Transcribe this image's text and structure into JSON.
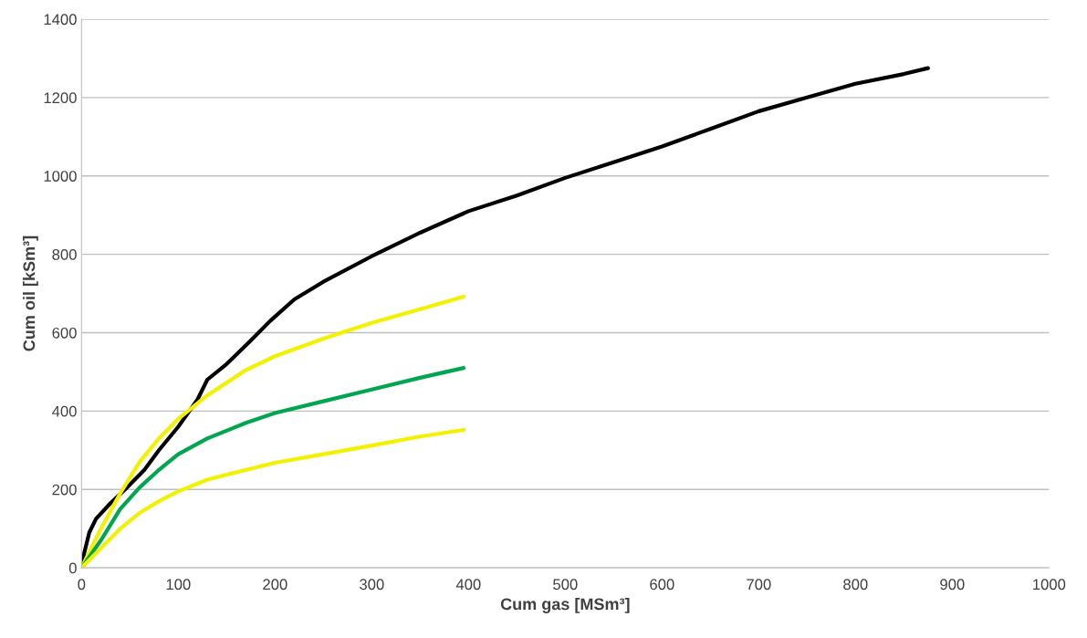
{
  "chart_data": {
    "type": "line",
    "xlabel": "Cum gas [MSm³]",
    "ylabel": "Cum oil [kSm³]",
    "xlim": [
      0,
      1000
    ],
    "xticks": [
      0,
      100,
      200,
      300,
      400,
      500,
      600,
      700,
      800,
      900,
      1000
    ],
    "ylim": [
      0,
      1400
    ],
    "yticks": [
      0,
      200,
      400,
      600,
      800,
      1000,
      1200,
      1400
    ],
    "grid": "y",
    "marker": "none",
    "line_style": "solid",
    "series": [
      {
        "color": "#000000",
        "x": [
          0,
          3,
          8,
          15,
          30,
          45,
          65,
          80,
          100,
          120,
          130,
          150,
          175,
          195,
          220,
          250,
          300,
          350,
          400,
          450,
          500,
          550,
          600,
          650,
          700,
          750,
          800,
          850,
          875
        ],
        "values": [
          0,
          40,
          90,
          125,
          165,
          200,
          250,
          300,
          360,
          430,
          480,
          520,
          580,
          630,
          685,
          730,
          795,
          855,
          910,
          950,
          995,
          1035,
          1075,
          1120,
          1165,
          1200,
          1235,
          1260,
          1275
        ]
      },
      {
        "color": "#f2f200",
        "x": [
          0,
          20,
          40,
          60,
          80,
          100,
          130,
          170,
          200,
          250,
          300,
          350,
          395
        ],
        "values": [
          0,
          100,
          190,
          270,
          330,
          380,
          440,
          505,
          540,
          585,
          625,
          660,
          692
        ]
      },
      {
        "color": "#00a550",
        "x": [
          0,
          20,
          40,
          60,
          80,
          100,
          130,
          170,
          200,
          250,
          300,
          350,
          395
        ],
        "values": [
          0,
          70,
          150,
          205,
          250,
          290,
          330,
          370,
          395,
          425,
          455,
          485,
          510
        ]
      },
      {
        "color": "#f2f200",
        "x": [
          0,
          20,
          40,
          60,
          80,
          100,
          130,
          170,
          200,
          250,
          300,
          350,
          395
        ],
        "values": [
          0,
          50,
          100,
          140,
          170,
          195,
          225,
          250,
          268,
          290,
          312,
          335,
          352
        ]
      }
    ]
  }
}
